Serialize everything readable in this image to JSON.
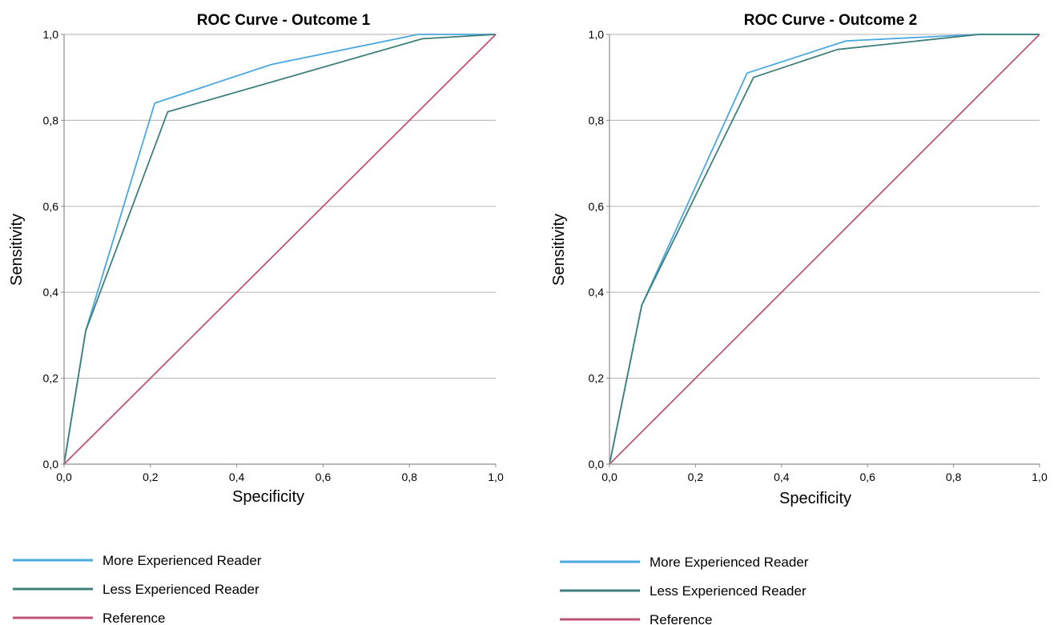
{
  "colors": {
    "more_experienced": "#4aa8e0",
    "less_experienced": "#3f7f7c",
    "reference": "#c0527a",
    "grid": "#bdbdbd",
    "axis": "#8c8c8c"
  },
  "chart_data": [
    {
      "type": "line",
      "title": "ROC Curve - Outcome 1",
      "xlabel": "Specificity",
      "ylabel": "Sensitivity",
      "xlim": [
        0,
        1
      ],
      "ylim": [
        0,
        1
      ],
      "xticks": [
        "0,0",
        "0,2",
        "0,4",
        "0,6",
        "0,8",
        "1,0"
      ],
      "yticks": [
        "0,0",
        "0,2",
        "0,4",
        "0,6",
        "0,8",
        "1,0"
      ],
      "grid": "horizontal",
      "legend_position": "bottom",
      "series": [
        {
          "name": "More Experienced Reader",
          "color_key": "more_experienced",
          "x": [
            0,
            0.05,
            0.21,
            0.48,
            0.82,
            1.0
          ],
          "y": [
            0,
            0.31,
            0.84,
            0.93,
            1.0,
            1.0
          ]
        },
        {
          "name": "Less Experienced Reader",
          "color_key": "less_experienced",
          "x": [
            0,
            0.05,
            0.24,
            0.83,
            1.0
          ],
          "y": [
            0,
            0.31,
            0.82,
            0.99,
            1.0
          ]
        },
        {
          "name": "Reference",
          "color_key": "reference",
          "x": [
            0,
            1.0
          ],
          "y": [
            0,
            1.0
          ]
        }
      ]
    },
    {
      "type": "line",
      "title": "ROC Curve - Outcome 2",
      "xlabel": "Specificity",
      "ylabel": "Sensitivity",
      "xlim": [
        0,
        1
      ],
      "ylim": [
        0,
        1
      ],
      "xticks": [
        "0,0",
        "0,2",
        "0,4",
        "0,6",
        "0,8",
        "1,0"
      ],
      "yticks": [
        "0,0",
        "0,2",
        "0,4",
        "0,6",
        "0,8",
        "1,0"
      ],
      "grid": "horizontal",
      "legend_position": "bottom",
      "series": [
        {
          "name": "More Experienced Reader",
          "color_key": "more_experienced",
          "x": [
            0,
            0.075,
            0.32,
            0.55,
            0.86,
            1.0
          ],
          "y": [
            0,
            0.37,
            0.91,
            0.985,
            1.0,
            1.0
          ]
        },
        {
          "name": "Less Experienced Reader",
          "color_key": "less_experienced",
          "x": [
            0,
            0.075,
            0.335,
            0.53,
            0.86,
            1.0
          ],
          "y": [
            0,
            0.37,
            0.9,
            0.965,
            1.0,
            1.0
          ]
        },
        {
          "name": "Reference",
          "color_key": "reference",
          "x": [
            0,
            1.0
          ],
          "y": [
            0,
            1.0
          ]
        }
      ]
    }
  ]
}
